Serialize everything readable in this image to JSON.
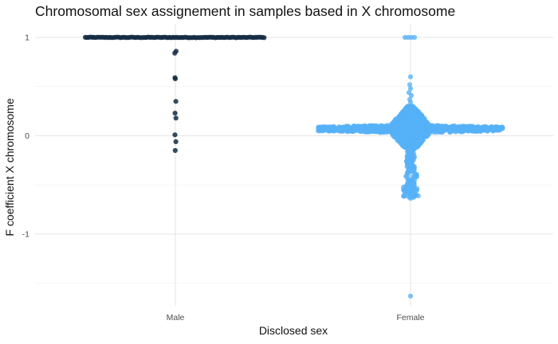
{
  "chart_data": {
    "type": "scatter",
    "subtype": "beeswarm",
    "title": "Chromosomal sex assignement in samples based in X chromosome",
    "xlabel": "Disclosed sex",
    "ylabel": "F coefficient X chromosome",
    "categories": [
      "Male",
      "Female"
    ],
    "yticks": [
      1,
      0,
      -1
    ],
    "ylim": [
      -1.6,
      1.05
    ],
    "grid": true,
    "legend": "none",
    "series": [
      {
        "category": "Male",
        "color": "#132b43",
        "values": [
          1.0,
          0.99,
          0.98,
          0.86,
          0.84,
          0.59,
          0.58,
          0.35,
          0.23,
          0.18,
          0.01,
          -0.06,
          -0.15
        ]
      },
      {
        "category": "Female",
        "color": "#56b1f7",
        "values": [
          1.0,
          1.0,
          1.0,
          0.6,
          0.52,
          0.48,
          0.42,
          0.35,
          0.3,
          0.25,
          0.2,
          0.15,
          0.1,
          0.07,
          0.05,
          0.0,
          -0.05,
          -0.1,
          -0.2,
          -0.3,
          -0.38,
          -0.45,
          -0.55,
          -0.6,
          -0.64,
          -1.63
        ]
      }
    ]
  }
}
